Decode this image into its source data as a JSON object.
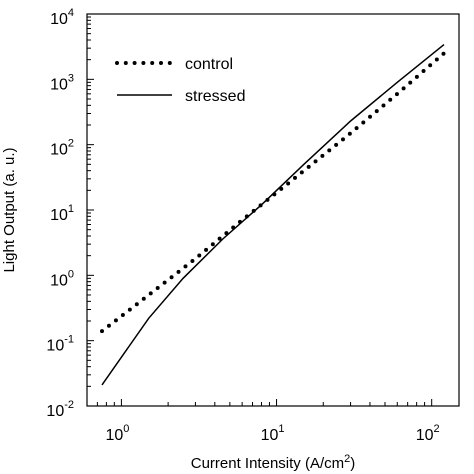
{
  "chart_data": {
    "type": "line",
    "title": "",
    "xlabel": "Current Intensity (A/cm",
    "xlabel_sup": "2",
    "xlabel_close": ")",
    "ylabel": "Light Output (a. u.)",
    "x_scale": "log",
    "y_scale": "log",
    "xlim": [
      0.6,
      150
    ],
    "ylim": [
      0.01,
      10000
    ],
    "x_ticks": [
      {
        "value": 1,
        "base": "10",
        "exp": "0"
      },
      {
        "value": 10,
        "base": "10",
        "exp": "1"
      },
      {
        "value": 100,
        "base": "10",
        "exp": "2"
      }
    ],
    "y_ticks": [
      {
        "value": 0.01,
        "base": "10",
        "exp": "-2"
      },
      {
        "value": 0.1,
        "base": "10",
        "exp": "-1"
      },
      {
        "value": 1,
        "base": "10",
        "exp": "0"
      },
      {
        "value": 10,
        "base": "10",
        "exp": "1"
      },
      {
        "value": 100,
        "base": "10",
        "exp": "2"
      },
      {
        "value": 1000,
        "base": "10",
        "exp": "3"
      },
      {
        "value": 10000,
        "base": "10",
        "exp": "4"
      }
    ],
    "grid": false,
    "legend_position": "top-left",
    "series": [
      {
        "name": "control",
        "style": "dotted",
        "color": "#000000",
        "x": [
          0.75,
          1.5,
          3,
          6,
          12,
          30,
          60,
          120
        ],
        "y": [
          0.14,
          0.5,
          1.8,
          7,
          26,
          150,
          600,
          2500
        ]
      },
      {
        "name": "stressed",
        "style": "solid",
        "color": "#000000",
        "x": [
          0.75,
          1.5,
          2.5,
          4.5,
          8,
          15,
          30,
          60,
          120
        ],
        "y": [
          0.021,
          0.22,
          0.9,
          3.6,
          12,
          50,
          230,
          900,
          3400
        ]
      }
    ]
  }
}
